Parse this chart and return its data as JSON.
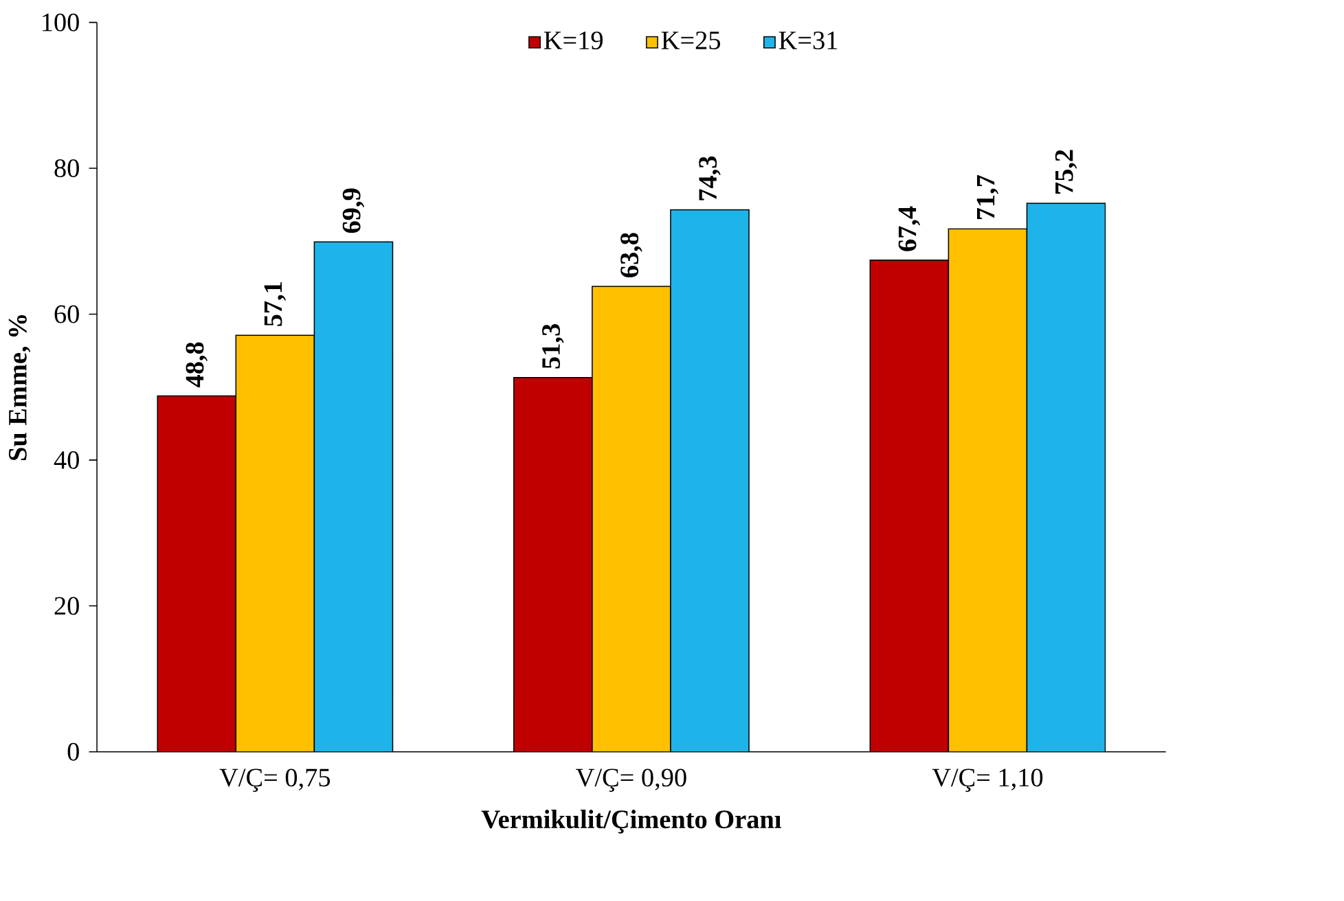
{
  "chart_data": {
    "type": "bar",
    "xlabel": "Vermikulit/Çimento  Oranı",
    "ylabel": "Su Emme,  %",
    "categories": [
      "V/Ç= 0,75",
      "V/Ç= 0,90",
      "V/Ç= 1,10"
    ],
    "series": [
      {
        "name": "K=19",
        "color": "#c00000",
        "values": [
          48.8,
          51.3,
          67.4
        ],
        "value_labels": [
          "48,8",
          "51,3",
          "67,4"
        ]
      },
      {
        "name": "K=25",
        "color": "#ffc000",
        "values": [
          57.1,
          63.8,
          71.7
        ],
        "value_labels": [
          "57,1",
          "63,8",
          "71,7"
        ]
      },
      {
        "name": "K=31",
        "color": "#1eb4ea",
        "values": [
          69.9,
          74.3,
          75.2
        ],
        "value_labels": [
          "69,9",
          "74,3",
          "75,2"
        ]
      }
    ],
    "ylim": [
      0,
      100
    ],
    "yticks": [
      0,
      20,
      40,
      60,
      80,
      100
    ],
    "grid": false,
    "legend": "top"
  }
}
